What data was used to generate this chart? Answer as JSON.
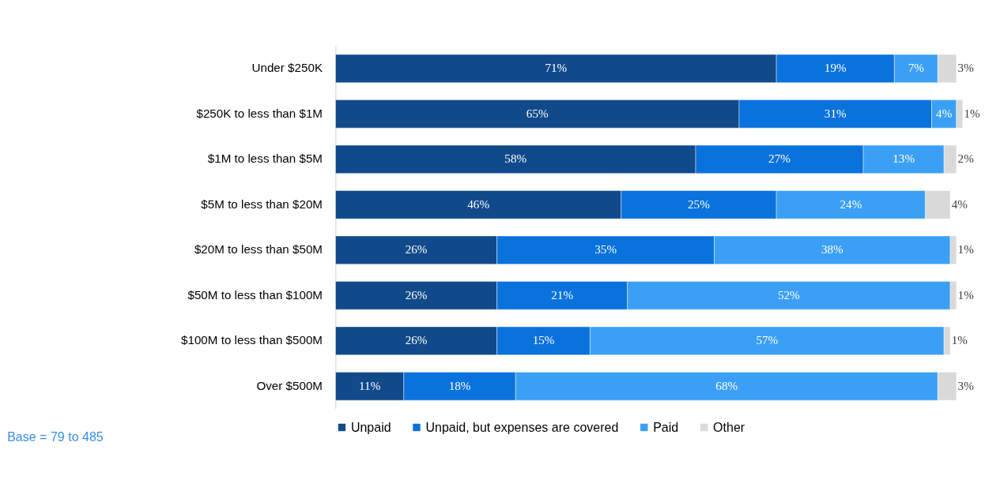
{
  "chart_data": {
    "type": "bar",
    "orientation": "horizontal",
    "stacked": true,
    "legend": "bottom",
    "tick_labels": "y",
    "categories": [
      "Under $250K",
      "$250K to less than $1M",
      "$1M to less than $5M",
      "$5M to less than $20M",
      "$20M to less than $50M",
      "$50M to less than $100M",
      "$100M to less than $500M",
      "Over $500M"
    ],
    "series": [
      {
        "name": "Unpaid",
        "color": "#114a8b",
        "values": [
          71,
          65,
          58,
          46,
          26,
          26,
          26,
          11
        ],
        "value_labels": [
          "71%",
          "65%",
          "58%",
          "46%",
          "26%",
          "26%",
          "26%",
          "11%"
        ]
      },
      {
        "name": "Unpaid, but expenses are covered",
        "color": "#0a72dc",
        "values": [
          19,
          31,
          27,
          25,
          35,
          21,
          15,
          18
        ],
        "value_labels": [
          "19%",
          "31%",
          "27%",
          "25%",
          "35%",
          "21%",
          "15%",
          "18%"
        ]
      },
      {
        "name": "Paid",
        "color": "#3ba0f5",
        "values": [
          7,
          4,
          13,
          24,
          38,
          52,
          57,
          68
        ],
        "value_labels": [
          "7%",
          "4%",
          "13%",
          "24%",
          "38%",
          "52%",
          "57%",
          "68%"
        ]
      },
      {
        "name": "Other",
        "color": "#d9d9d9",
        "values": [
          3,
          1,
          2,
          4,
          1,
          1,
          1,
          3
        ],
        "value_labels": [
          "3%",
          "1%",
          "2%",
          "4%",
          "1%",
          "1%",
          "1%",
          "3%"
        ]
      }
    ],
    "annotations": [
      "Base = 79 to 485"
    ]
  }
}
